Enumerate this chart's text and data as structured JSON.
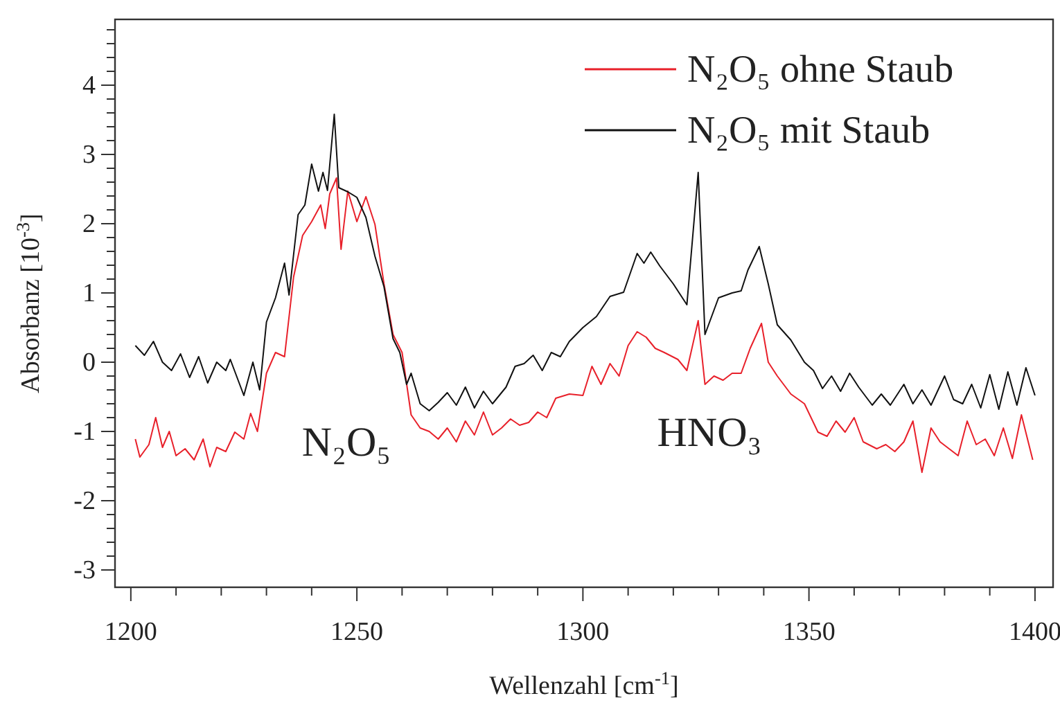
{
  "chart_data": {
    "type": "line",
    "xlabel": "Wellenzahl [cm$^{-1}$]",
    "ylabel": "Absorbanz [10$^{-3}$]",
    "xlim": [
      1196.5,
      1404
    ],
    "ylim": [
      -3.25,
      4.95
    ],
    "xticks": [
      1200,
      {
        "value": 1210,
        "label": null
      },
      {
        "value": 1220,
        "label": null
      },
      {
        "value": 1230,
        "label": null
      },
      {
        "value": 1240,
        "label": null
      },
      1250,
      {
        "value": 1260,
        "label": null
      },
      {
        "value": 1270,
        "label": null
      },
      {
        "value": 1280,
        "label": null
      },
      {
        "value": 1290,
        "label": null
      },
      1300,
      {
        "value": 1310,
        "label": null
      },
      {
        "value": 1320,
        "label": null
      },
      {
        "value": 1330,
        "label": null
      },
      {
        "value": 1340,
        "label": null
      },
      1350,
      {
        "value": 1360,
        "label": null
      },
      {
        "value": 1370,
        "label": null
      },
      {
        "value": 1380,
        "label": null
      },
      {
        "value": 1390,
        "label": null
      },
      1400
    ],
    "yticks": [
      -3,
      {
        "value": -2.8,
        "label": null
      },
      {
        "value": -2.6,
        "label": null
      },
      {
        "value": -2.4,
        "label": null
      },
      {
        "value": -2.2,
        "label": null
      },
      -2,
      {
        "value": -1.8,
        "label": null
      },
      {
        "value": -1.6,
        "label": null
      },
      {
        "value": -1.4,
        "label": null
      },
      {
        "value": -1.2,
        "label": null
      },
      -1,
      {
        "value": -0.8,
        "label": null
      },
      {
        "value": -0.6,
        "label": null
      },
      {
        "value": -0.4,
        "label": null
      },
      {
        "value": -0.2,
        "label": null
      },
      0,
      {
        "value": 0.2,
        "label": null
      },
      {
        "value": 0.4,
        "label": null
      },
      {
        "value": 0.6,
        "label": null
      },
      {
        "value": 0.8,
        "label": null
      },
      1,
      {
        "value": 1.2,
        "label": null
      },
      {
        "value": 1.4,
        "label": null
      },
      {
        "value": 1.6,
        "label": null
      },
      {
        "value": 1.8,
        "label": null
      },
      2,
      {
        "value": 2.2,
        "label": null
      },
      {
        "value": 2.4,
        "label": null
      },
      {
        "value": 2.6,
        "label": null
      },
      {
        "value": 2.8,
        "label": null
      },
      3,
      {
        "value": 3.2,
        "label": null
      },
      {
        "value": 3.4,
        "label": null
      },
      {
        "value": 3.6,
        "label": null
      },
      {
        "value": 3.8,
        "label": null
      },
      4,
      {
        "value": 4.2,
        "label": null
      },
      {
        "value": 4.4,
        "label": null
      },
      {
        "value": 4.6,
        "label": null
      },
      {
        "value": 4.8,
        "label": null
      }
    ],
    "grid": false,
    "legend": "top right",
    "marker": "none",
    "line_style": "solid",
    "annotations": [
      "N₂O₅",
      "HNO₃"
    ],
    "series": [
      {
        "name": "N₂O₅ ohne Staub",
        "color": "#e8202a",
        "x": [
          1201,
          1202,
          1204,
          1205.5,
          1207,
          1208.5,
          1210,
          1212,
          1214,
          1216,
          1217.5,
          1219,
          1221,
          1223,
          1225,
          1226.5,
          1228,
          1230,
          1232,
          1234,
          1236,
          1238,
          1240,
          1242,
          1243,
          1244,
          1245.5,
          1246.5,
          1248,
          1250,
          1252,
          1254,
          1256,
          1258,
          1260,
          1262,
          1264,
          1266,
          1268,
          1270,
          1272,
          1274,
          1276,
          1278,
          1280,
          1282,
          1284,
          1286,
          1288,
          1290,
          1292,
          1294,
          1297,
          1300,
          1302,
          1304,
          1306,
          1308,
          1310,
          1312,
          1314,
          1316,
          1318,
          1321,
          1323,
          1325.5,
          1327,
          1329,
          1331,
          1333,
          1335,
          1337,
          1339.5,
          1341,
          1343,
          1346,
          1349,
          1352,
          1354,
          1356,
          1358,
          1360,
          1362,
          1365,
          1367,
          1369,
          1371,
          1373,
          1375,
          1377,
          1379,
          1381,
          1383,
          1385,
          1387,
          1389,
          1391,
          1393,
          1395,
          1397,
          1399.5
        ],
        "values": [
          -1.11,
          -1.37,
          -1.19,
          -0.8,
          -1.23,
          -1.0,
          -1.35,
          -1.25,
          -1.41,
          -1.11,
          -1.51,
          -1.23,
          -1.29,
          -1.01,
          -1.11,
          -0.74,
          -1.0,
          -0.16,
          0.14,
          0.08,
          1.23,
          1.83,
          2.03,
          2.27,
          1.93,
          2.43,
          2.66,
          1.63,
          2.47,
          2.03,
          2.39,
          1.99,
          1.13,
          0.4,
          0.14,
          -0.76,
          -0.95,
          -1.0,
          -1.11,
          -0.95,
          -1.15,
          -0.85,
          -1.05,
          -0.72,
          -1.05,
          -0.95,
          -0.82,
          -0.91,
          -0.87,
          -0.72,
          -0.8,
          -0.52,
          -0.46,
          -0.48,
          -0.06,
          -0.32,
          -0.02,
          -0.2,
          0.24,
          0.44,
          0.36,
          0.2,
          0.14,
          0.04,
          -0.12,
          0.6,
          -0.32,
          -0.2,
          -0.26,
          -0.16,
          -0.16,
          0.2,
          0.56,
          0,
          -0.2,
          -0.46,
          -0.6,
          -1.01,
          -1.07,
          -0.85,
          -1.01,
          -0.8,
          -1.15,
          -1.25,
          -1.19,
          -1.29,
          -1.15,
          -0.85,
          -1.59,
          -0.95,
          -1.15,
          -1.25,
          -1.35,
          -0.85,
          -1.19,
          -1.11,
          -1.35,
          -0.95,
          -1.39,
          -0.76,
          -1.41
        ]
      },
      {
        "name": "N₂O₅ mit Staub",
        "color": "#111111",
        "x": [
          1201,
          1203,
          1205,
          1207,
          1209,
          1211,
          1213,
          1215,
          1217,
          1219,
          1221,
          1222,
          1225,
          1227,
          1228.5,
          1230,
          1232,
          1234,
          1235,
          1237,
          1238.5,
          1240,
          1241.5,
          1242.5,
          1243.5,
          1245,
          1246,
          1248,
          1250,
          1252,
          1254,
          1256,
          1258,
          1259.5,
          1261,
          1262,
          1264,
          1266,
          1268,
          1270,
          1272,
          1274,
          1276,
          1278,
          1280,
          1283,
          1285,
          1287,
          1289,
          1291,
          1293,
          1295,
          1297,
          1300,
          1303,
          1306,
          1309,
          1312,
          1313.5,
          1315,
          1317,
          1320,
          1323,
          1325.5,
          1327,
          1330,
          1333,
          1335,
          1336.5,
          1339,
          1341,
          1343,
          1346,
          1349,
          1351,
          1353,
          1355,
          1357,
          1359,
          1361,
          1364,
          1366,
          1368,
          1371,
          1373,
          1375,
          1377,
          1380,
          1382,
          1384,
          1386,
          1388,
          1390,
          1392,
          1394,
          1396,
          1398,
          1400
        ],
        "values": [
          0.24,
          0.1,
          0.3,
          0,
          -0.12,
          0.12,
          -0.22,
          0.08,
          -0.3,
          0,
          -0.12,
          0.04,
          -0.48,
          0,
          -0.4,
          0.58,
          0.93,
          1.43,
          0.97,
          2.13,
          2.27,
          2.86,
          2.47,
          2.74,
          2.48,
          3.58,
          2.52,
          2.46,
          2.38,
          2.09,
          1.53,
          1.09,
          0.34,
          0.14,
          -0.32,
          -0.16,
          -0.6,
          -0.7,
          -0.58,
          -0.44,
          -0.62,
          -0.36,
          -0.66,
          -0.42,
          -0.6,
          -0.36,
          -0.06,
          -0.02,
          0.1,
          -0.12,
          0.14,
          0.08,
          0.3,
          0.5,
          0.66,
          0.95,
          1.01,
          1.57,
          1.43,
          1.59,
          1.39,
          1.13,
          0.83,
          2.74,
          0.4,
          0.93,
          1.0,
          1.03,
          1.33,
          1.67,
          1.13,
          0.54,
          0.32,
          0,
          -0.12,
          -0.38,
          -0.2,
          -0.42,
          -0.16,
          -0.36,
          -0.62,
          -0.46,
          -0.62,
          -0.32,
          -0.6,
          -0.4,
          -0.62,
          -0.2,
          -0.54,
          -0.6,
          -0.32,
          -0.66,
          -0.18,
          -0.68,
          -0.14,
          -0.62,
          -0.08,
          -0.48
        ]
      }
    ]
  }
}
